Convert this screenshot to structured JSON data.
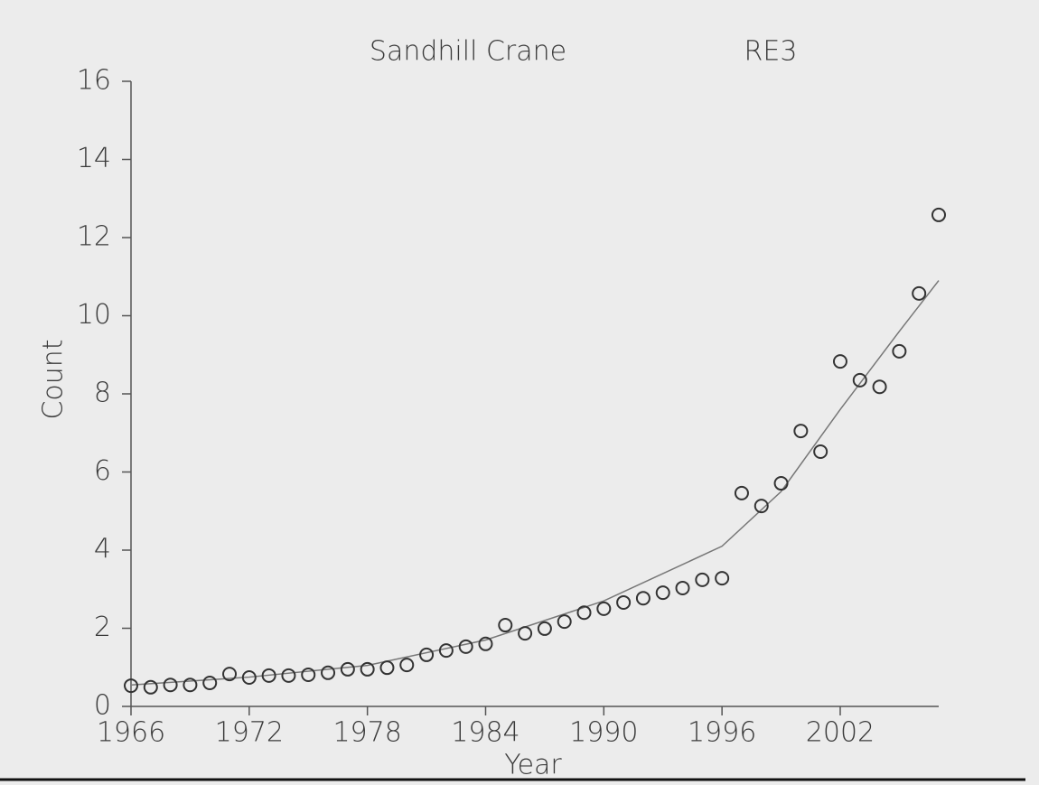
{
  "chart_data": {
    "type": "scatter",
    "title": "Sandhill Crane",
    "subtitle": "RE3",
    "x_label": "Year",
    "y_label": "Count",
    "x": [
      1966,
      1967,
      1968,
      1969,
      1970,
      1971,
      1972,
      1973,
      1974,
      1975,
      1976,
      1977,
      1978,
      1979,
      1980,
      1981,
      1982,
      1983,
      1984,
      1985,
      1986,
      1987,
      1988,
      1989,
      1990,
      1991,
      1992,
      1993,
      1994,
      1995,
      1996,
      1997,
      1998,
      1999,
      2000,
      2001,
      2002,
      2003,
      2004,
      2005,
      2006,
      2007
    ],
    "values": [
      0.53,
      0.49,
      0.55,
      0.55,
      0.6,
      0.83,
      0.74,
      0.79,
      0.79,
      0.81,
      0.86,
      0.95,
      0.95,
      0.99,
      1.06,
      1.32,
      1.43,
      1.53,
      1.6,
      2.08,
      1.87,
      1.99,
      2.17,
      2.4,
      2.5,
      2.66,
      2.77,
      2.91,
      3.03,
      3.24,
      3.28,
      5.46,
      5.13,
      5.71,
      7.05,
      6.52,
      8.83,
      8.35,
      8.18,
      9.09,
      10.57,
      12.58
    ],
    "color": "#333333",
    "fit": {
      "x": [
        1966,
        1972,
        1978,
        1984,
        1990,
        1996,
        1999,
        2002,
        2005,
        2007
      ],
      "values": [
        0.55,
        0.75,
        1.05,
        1.7,
        2.7,
        4.1,
        5.5,
        7.6,
        9.6,
        10.9
      ],
      "color": "#777777"
    },
    "xlim": [
      1966,
      2007
    ],
    "ylim": [
      0,
      16
    ],
    "xticks": [
      1966,
      1972,
      1978,
      1984,
      1990,
      1996,
      2002
    ],
    "yticks": [
      0,
      2,
      4,
      6,
      8,
      10,
      12,
      14,
      16
    ]
  }
}
